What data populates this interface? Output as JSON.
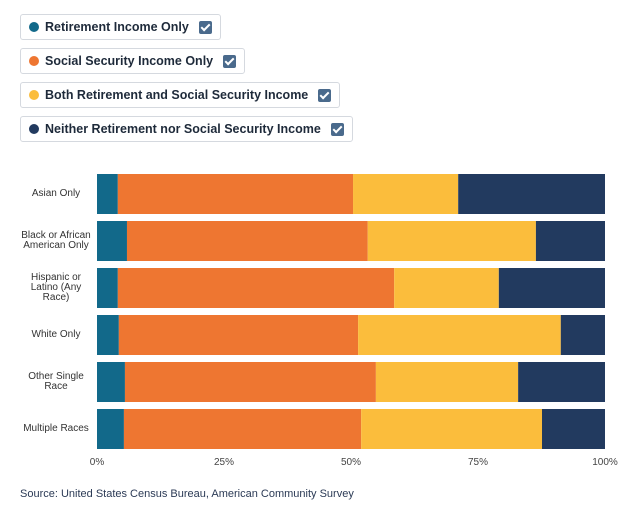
{
  "chart_data": {
    "type": "stacked-bar-horizontal",
    "categories": [
      "Asian Only",
      "Black or African American Only",
      "Hispanic or Latino (Any Race)",
      "White Only",
      "Other Single Race",
      "Multiple Races"
    ],
    "series": [
      {
        "name": "Retirement Income Only",
        "color": "#12698a",
        "values": [
          4.1,
          5.9,
          4.1,
          4.3,
          5.5,
          5.3
        ]
      },
      {
        "name": "Social Security Income Only",
        "color": "#ee7631",
        "values": [
          46.3,
          47.4,
          54.4,
          47.1,
          49.4,
          46.7
        ]
      },
      {
        "name": "Both Retirement and Social Security Income",
        "color": "#fbbd3c",
        "values": [
          20.7,
          33.1,
          20.6,
          39.9,
          28.0,
          35.6
        ]
      },
      {
        "name": "Neither Retirement nor Social Security Income",
        "color": "#223a5f",
        "values": [
          28.9,
          13.6,
          20.9,
          8.7,
          17.1,
          12.4
        ]
      }
    ],
    "xlim": [
      0,
      100
    ],
    "xticks": [
      {
        "value": 0,
        "label": "0%"
      },
      {
        "value": 25,
        "label": "25%"
      },
      {
        "value": 50,
        "label": "50%"
      },
      {
        "value": 75,
        "label": "75%"
      },
      {
        "value": 100,
        "label": "100%"
      }
    ],
    "source": "Source: United States Census Bureau, American Community Survey"
  }
}
